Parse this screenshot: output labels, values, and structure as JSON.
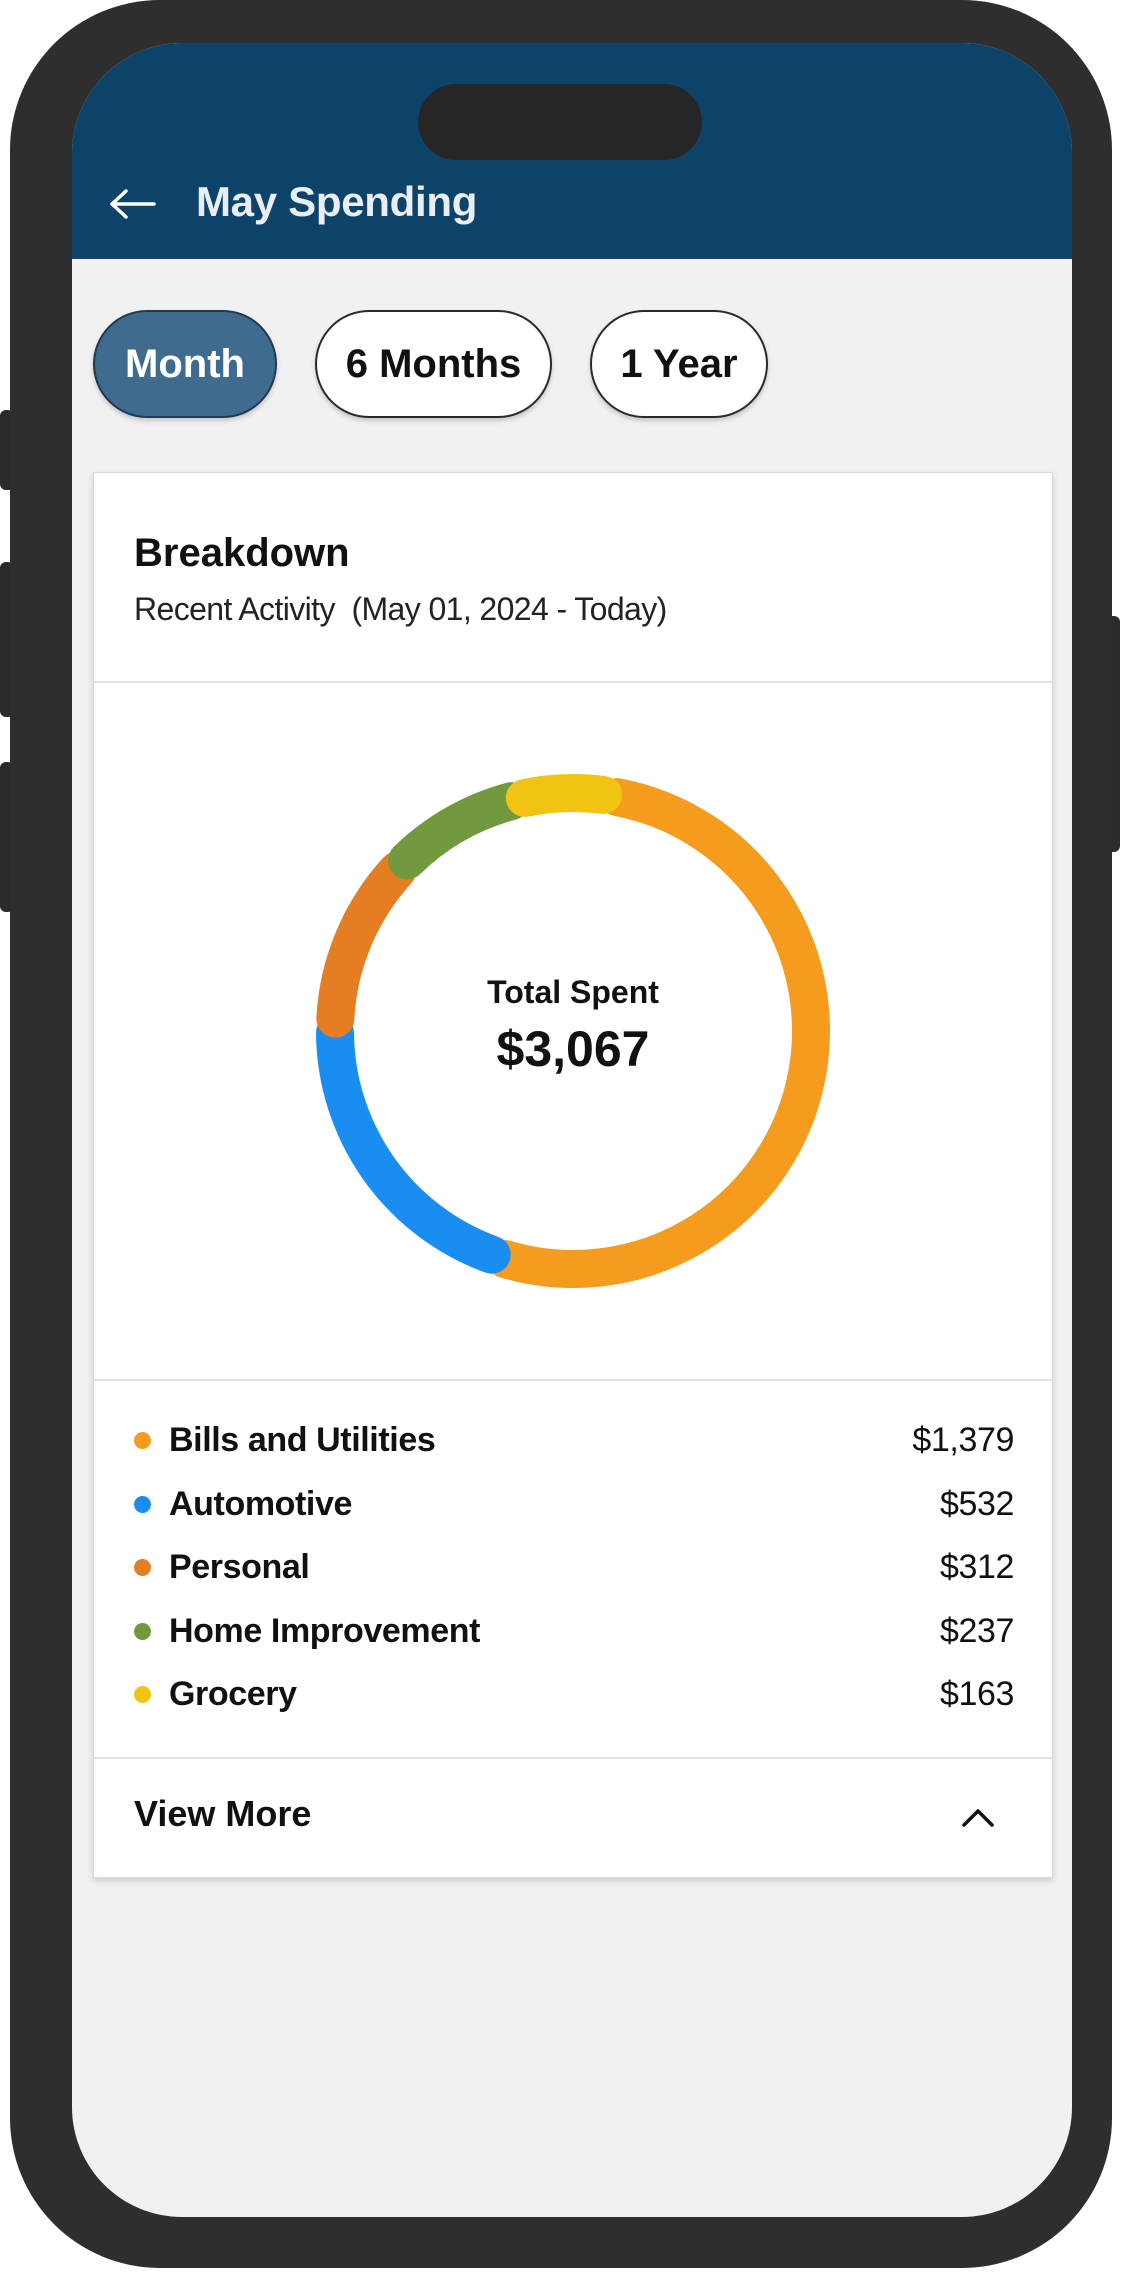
{
  "header": {
    "title": "May Spending",
    "back_icon": "arrow-left-icon",
    "background": "#0e4369"
  },
  "tabs": [
    {
      "label": "Month",
      "active": true
    },
    {
      "label": "6 Months",
      "active": false
    },
    {
      "label": "1 Year",
      "active": false
    }
  ],
  "breakdown": {
    "title": "Breakdown",
    "subtitle": "Recent Activity  (May 01, 2024 - Today)",
    "total_label": "Total Spent",
    "total_value": "$3,067"
  },
  "categories": [
    {
      "name": "Bills and Utilities",
      "amount": "$1,379",
      "color": "#f59b1e"
    },
    {
      "name": "Automotive",
      "amount": "$532",
      "color": "#1a8ef0"
    },
    {
      "name": "Personal",
      "amount": "$312",
      "color": "#e57e23"
    },
    {
      "name": "Home Improvement",
      "amount": "$237",
      "color": "#72993e"
    },
    {
      "name": "Grocery",
      "amount": "$163",
      "color": "#f1c414"
    }
  ],
  "chart_data": {
    "type": "pie",
    "categories": [
      "Bills and Utilities",
      "Automotive",
      "Personal",
      "Home Improvement",
      "Grocery"
    ],
    "values": [
      1379,
      532,
      312,
      237,
      163
    ]
  },
  "footer": {
    "view_more_label": "View More",
    "chevron_icon": "chevron-up-icon"
  }
}
